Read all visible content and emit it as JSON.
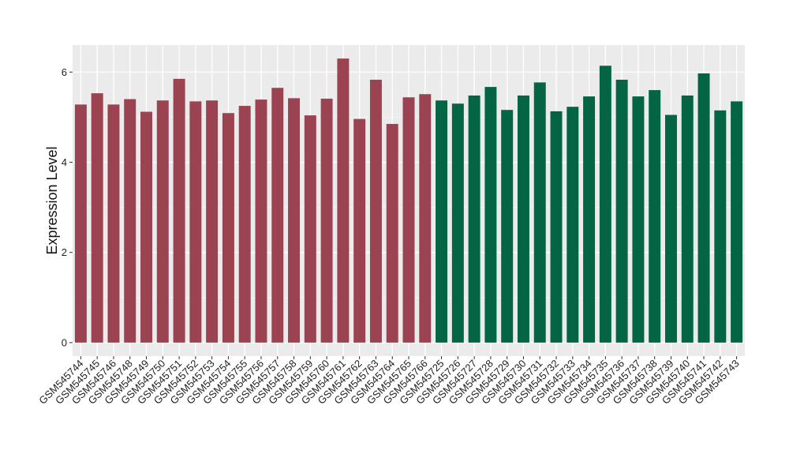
{
  "chart_data": {
    "type": "bar",
    "ylabel": "Expression Level",
    "xlabel": "",
    "ylim": [
      -0.3,
      6.6
    ],
    "yticks": [
      0,
      2,
      4,
      6
    ],
    "grid": true,
    "background": "#ebebeb",
    "groups": [
      {
        "color": "#9b4350",
        "categories_range": [
          0,
          22
        ]
      },
      {
        "color": "#036543",
        "categories_range": [
          22,
          41
        ]
      }
    ],
    "categories": [
      "GSM545744",
      "GSM545745",
      "GSM545746",
      "GSM545748",
      "GSM545749",
      "GSM545750",
      "GSM545751",
      "GSM545752",
      "GSM545753",
      "GSM545754",
      "GSM545755",
      "GSM545756",
      "GSM545757",
      "GSM545758",
      "GSM545759",
      "GSM545760",
      "GSM545761",
      "GSM545762",
      "GSM545763",
      "GSM545764",
      "GSM545765",
      "GSM545766",
      "GSM545725",
      "GSM545726",
      "GSM545727",
      "GSM545728",
      "GSM545729",
      "GSM545730",
      "GSM545731",
      "GSM545732",
      "GSM545733",
      "GSM545734",
      "GSM545735",
      "GSM545736",
      "GSM545737",
      "GSM545738",
      "GSM545739",
      "GSM545740",
      "GSM545741",
      "GSM545742",
      "GSM545743"
    ],
    "values": [
      5.28,
      5.53,
      5.28,
      5.4,
      5.12,
      5.37,
      5.85,
      5.35,
      5.37,
      5.09,
      5.25,
      5.39,
      5.65,
      5.42,
      5.04,
      5.41,
      6.3,
      4.96,
      5.83,
      4.85,
      5.44,
      5.51,
      5.37,
      5.3,
      5.48,
      5.67,
      5.16,
      5.48,
      5.77,
      5.13,
      5.23,
      5.46,
      6.14,
      5.83,
      5.46,
      5.6,
      5.05,
      5.48,
      5.97,
      5.15,
      5.35
    ]
  }
}
